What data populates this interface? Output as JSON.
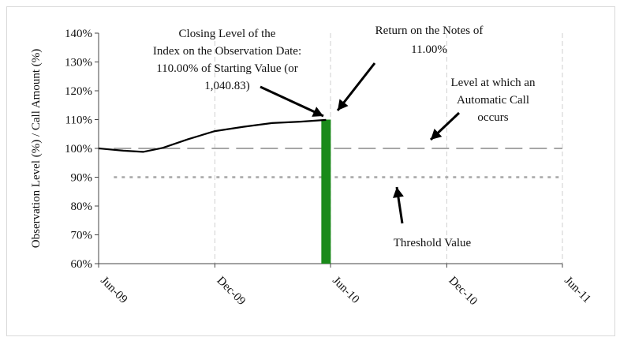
{
  "chart_data": {
    "type": "line",
    "title": "",
    "xlabel": "",
    "ylabel": "Observation Level (%) / Call Amount (%)",
    "ylim": [
      60,
      140
    ],
    "yticks": [
      "60%",
      "70%",
      "80%",
      "90%",
      "100%",
      "110%",
      "120%",
      "130%",
      "140%"
    ],
    "ytick_values": [
      60,
      70,
      80,
      90,
      100,
      110,
      120,
      130,
      140
    ],
    "xticks": [
      "Jun-09",
      "Dec-09",
      "Jun-10",
      "Dec-10",
      "Jun-11"
    ],
    "xtick_values": [
      "2009-06",
      "2009-12",
      "2010-06",
      "2010-12",
      "2011-06"
    ],
    "grid": "vertical dashed",
    "series": [
      {
        "type": "line",
        "color": "#000000",
        "points": [
          {
            "x": "2009-06-01",
            "y": 100.0
          },
          {
            "x": "2009-07-10",
            "y": 99.2
          },
          {
            "x": "2009-08-10",
            "y": 98.8
          },
          {
            "x": "2009-09-10",
            "y": 100.2
          },
          {
            "x": "2009-10-20",
            "y": 103.2
          },
          {
            "x": "2009-12-01",
            "y": 106.0
          },
          {
            "x": "2010-01-15",
            "y": 107.5
          },
          {
            "x": "2010-03-01",
            "y": 108.8
          },
          {
            "x": "2010-04-15",
            "y": 109.3
          },
          {
            "x": "2010-05-25",
            "y": 109.9
          }
        ]
      }
    ],
    "bar": {
      "x": "2010-05-25",
      "value": 110,
      "color": "#1a8a1a"
    },
    "reference_lines": [
      {
        "y": 100,
        "style": "long-dash",
        "color": "#a6a6a6",
        "xstart": "2009-06-25"
      },
      {
        "y": 90,
        "style": "dotted",
        "color": "#a6a6a6",
        "xstart": "2009-06-25"
      }
    ],
    "annotations": [
      {
        "lines": [
          "Closing Level of the",
          "Index on the Observation Date:",
          "110.00% of Starting Value (or",
          "1,040.83)"
        ]
      },
      {
        "lines": [
          "Return on the Notes of",
          "11.00%"
        ]
      },
      {
        "lines": [
          "Level at which an",
          "Automatic Call",
          "occurs"
        ]
      },
      {
        "lines": [
          "Threshold Value"
        ]
      }
    ]
  }
}
